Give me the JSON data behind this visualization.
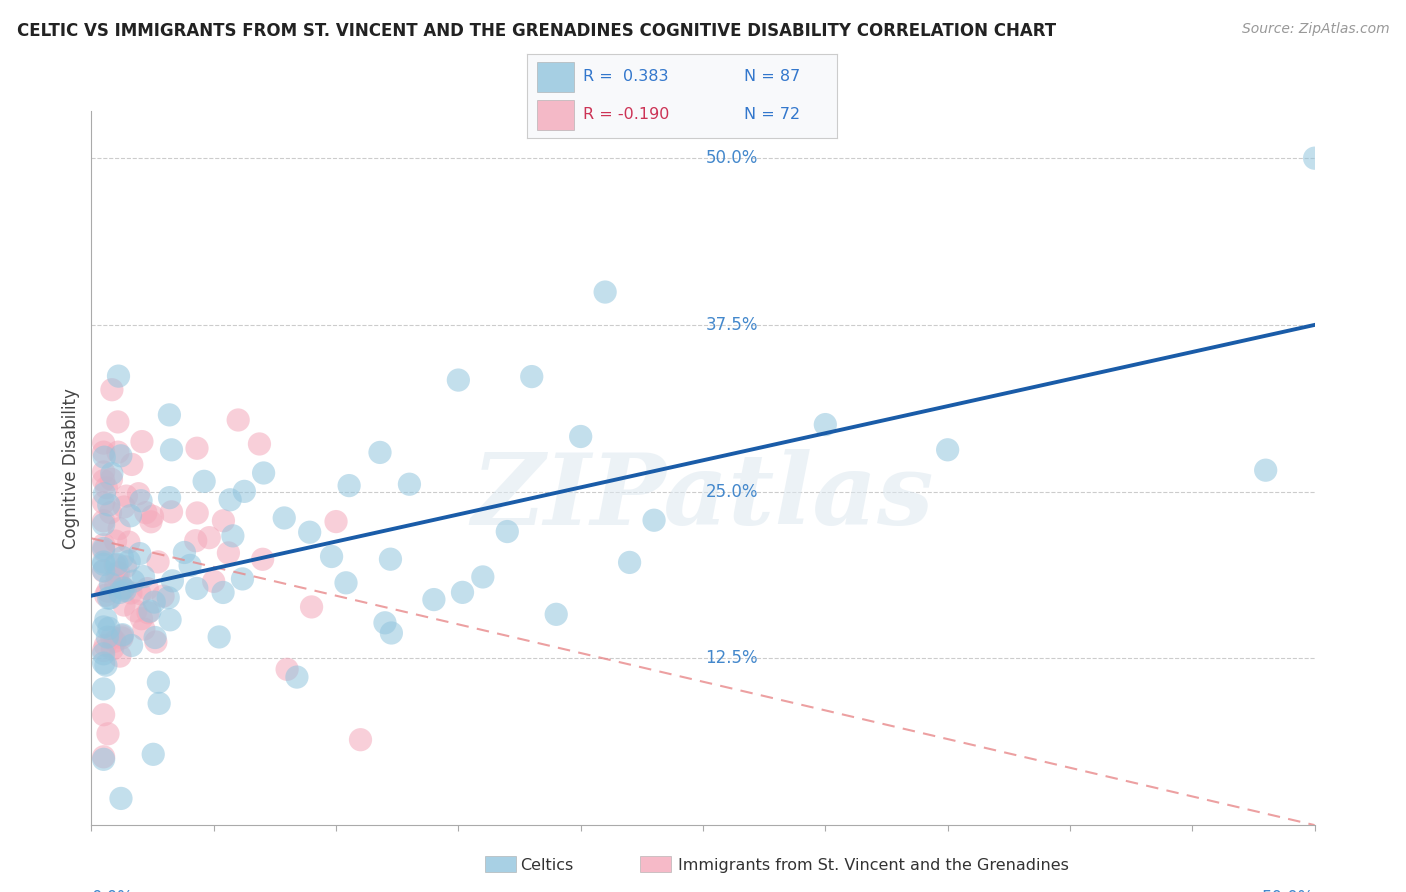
{
  "title": "CELTIC VS IMMIGRANTS FROM ST. VINCENT AND THE GRENADINES COGNITIVE DISABILITY CORRELATION CHART",
  "source": "Source: ZipAtlas.com",
  "ylabel": "Cognitive Disability",
  "ytick_labels": [
    "50.0%",
    "37.5%",
    "25.0%",
    "12.5%"
  ],
  "ytick_values": [
    0.5,
    0.375,
    0.25,
    0.125
  ],
  "xlim": [
    0.0,
    0.5
  ],
  "ylim": [
    0.0,
    0.535
  ],
  "legend_r1": "R =  0.383",
  "legend_n1": "N = 87",
  "legend_r2": "R = -0.190",
  "legend_n2": "N = 72",
  "color_celtics": "#92c5de",
  "color_immigrants": "#f4a9bb",
  "line_color_celtics": "#1a5ca8",
  "line_color_immigrants": "#e8888a",
  "watermark": "ZIPatlas",
  "background_color": "#ffffff",
  "celtics_line_x0": 0.0,
  "celtics_line_y0": 0.172,
  "celtics_line_x1": 0.5,
  "celtics_line_y1": 0.375,
  "immigrants_line_x0": 0.0,
  "immigrants_line_y0": 0.215,
  "immigrants_line_x1": 0.5,
  "immigrants_line_y1": 0.0
}
